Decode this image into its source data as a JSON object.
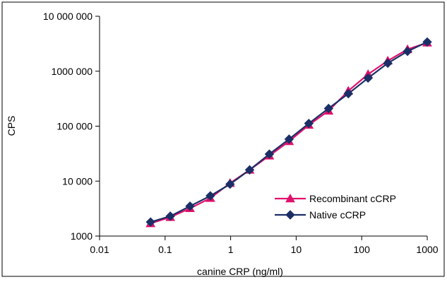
{
  "chart_data": {
    "type": "line",
    "title": "",
    "xlabel": "canine CRP (ng/ml)",
    "ylabel": "CPS",
    "x_scale": "log",
    "y_scale": "log",
    "xlim": [
      0.01,
      1000
    ],
    "ylim": [
      1000,
      10000000
    ],
    "x_ticks": [
      0.01,
      0.1,
      1,
      10,
      100,
      1000
    ],
    "x_tick_labels": [
      "0.01",
      "0.1",
      "1",
      "10",
      "100",
      "1000"
    ],
    "y_ticks": [
      1000,
      10000,
      100000,
      1000000,
      10000000
    ],
    "y_tick_labels": [
      "1000",
      "10 000",
      "100 000",
      "1000 000",
      "10 000 000"
    ],
    "grid": false,
    "legend_placement": "bottom-right",
    "series": [
      {
        "name": "Recombinant cCRP",
        "color": "#E0116C",
        "marker": "triangle",
        "x": [
          0.06,
          0.12,
          0.24,
          0.49,
          0.98,
          1.95,
          3.9,
          7.8,
          15.6,
          31.25,
          62.5,
          125,
          250,
          500,
          1000
        ],
        "values": [
          1700,
          2200,
          3200,
          4900,
          9200,
          16000,
          29000,
          53000,
          105000,
          190000,
          440000,
          880000,
          1550000,
          2500000,
          3300000
        ]
      },
      {
        "name": "Native cCRP",
        "color": "#1B2F66",
        "marker": "diamond",
        "x": [
          0.06,
          0.12,
          0.24,
          0.49,
          0.98,
          1.95,
          3.9,
          7.8,
          15.6,
          31.25,
          62.5,
          125,
          250,
          500,
          1000
        ],
        "values": [
          1800,
          2300,
          3500,
          5400,
          8800,
          16000,
          31000,
          58000,
          112000,
          210000,
          390000,
          750000,
          1400000,
          2300000,
          3400000
        ]
      }
    ]
  }
}
